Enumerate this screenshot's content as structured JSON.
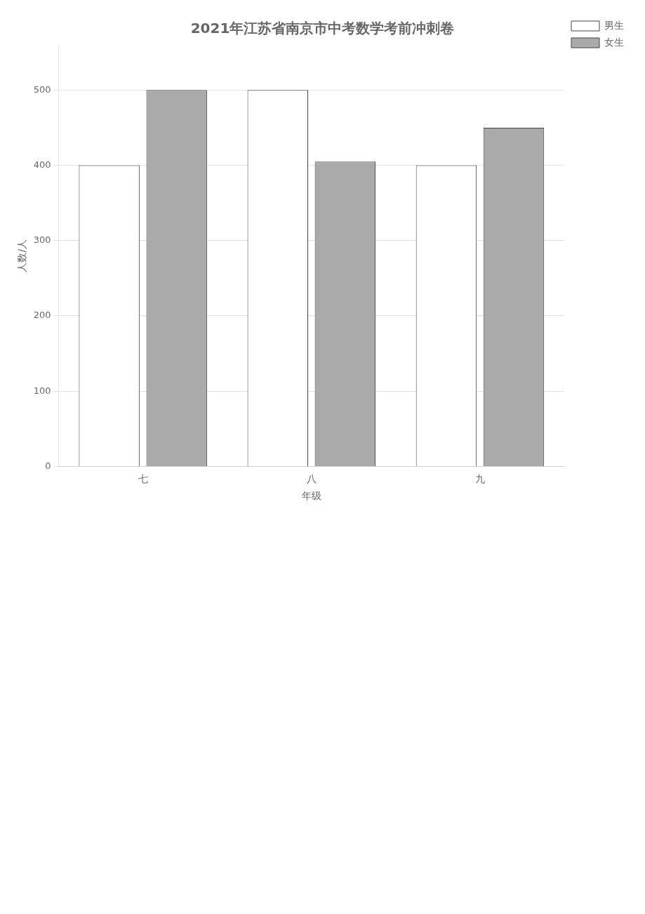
{
  "chart_data": {
    "type": "bar",
    "title": "2021年江苏省南京市中考数学考前冲刺卷",
    "x_label": "年级",
    "y_label": "人数/人",
    "categories": [
      "七",
      "八",
      "九"
    ],
    "series": [
      {
        "name": "男生",
        "color": "#ffffff",
        "values": [
          400,
          500,
          400
        ]
      },
      {
        "name": "女生",
        "color": "#aaaaaa",
        "values": [
          500,
          405,
          450
        ]
      }
    ],
    "ylim": [
      0,
      560
    ],
    "yticks": [
      0,
      100,
      200,
      300,
      400,
      500
    ],
    "grid": true,
    "legend": "upper right"
  }
}
